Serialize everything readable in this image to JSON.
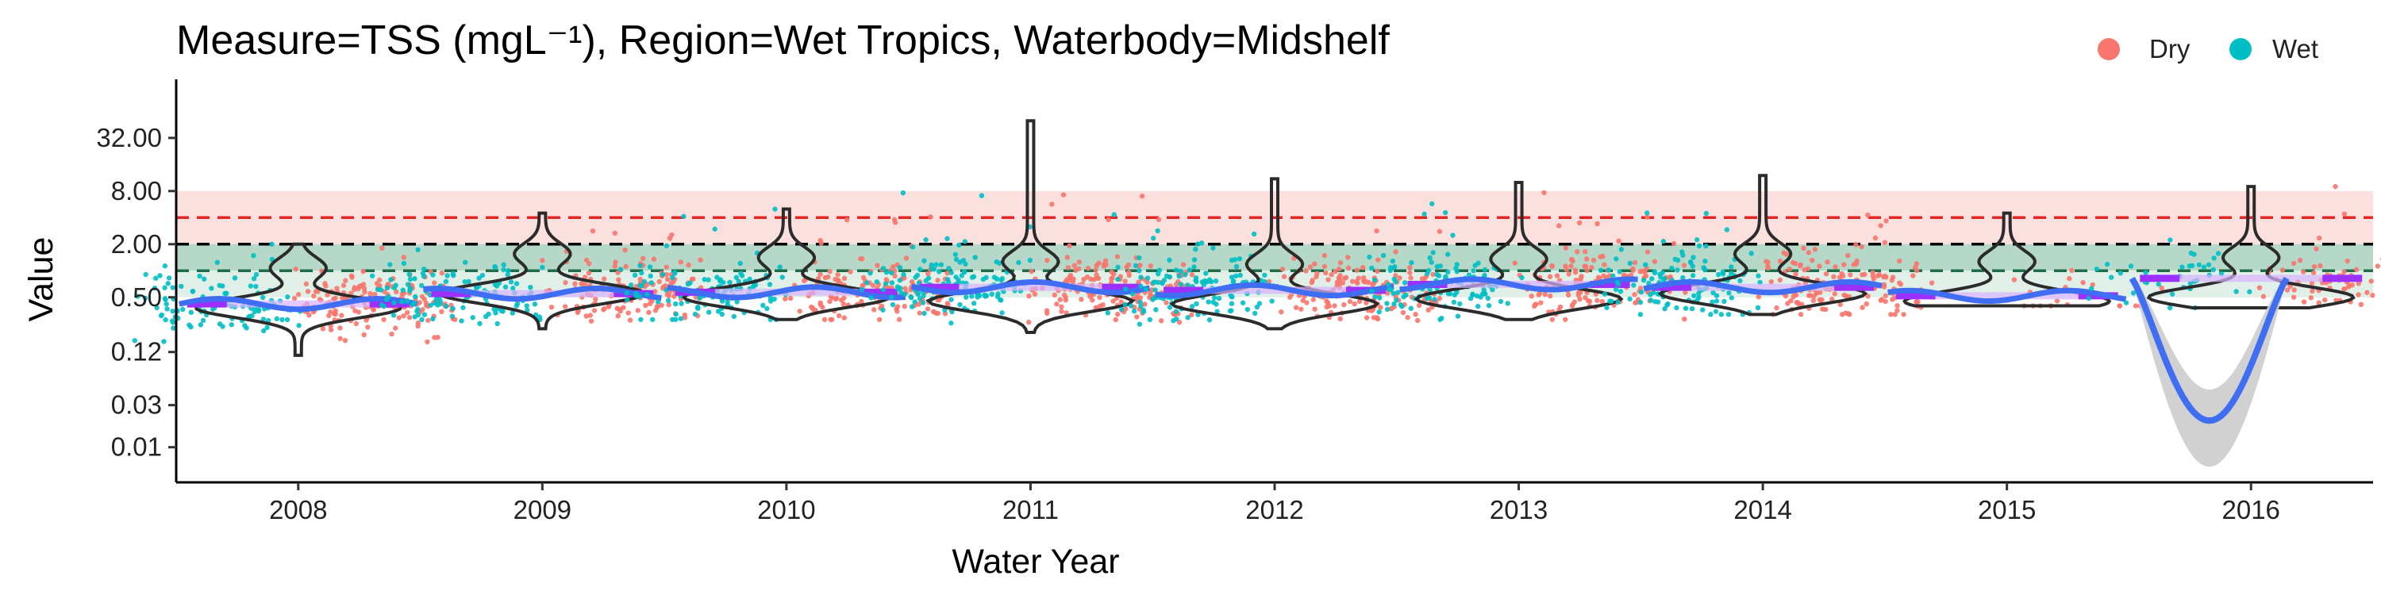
{
  "chart_data": {
    "type": "violin",
    "title": "Measure=TSS (mgL⁻¹), Region=Wet Tropics, Waterbody=Midshelf",
    "xlabel": "Water Year",
    "ylabel": "Value",
    "y_scale": "log",
    "y_range": [
      0.004,
      120
    ],
    "y_ticks": [
      0.01,
      0.03,
      0.12,
      0.5,
      2,
      8,
      32
    ],
    "y_tick_labels": [
      "0.01",
      "0.03",
      "0.12",
      "0.50",
      "2.00",
      "8.00",
      "32.00"
    ],
    "categories": [
      "2008",
      "2009",
      "2010",
      "2011",
      "2012",
      "2013",
      "2014",
      "2015",
      "2016"
    ],
    "legend": {
      "placement": "top-right",
      "entries": [
        {
          "name": "Dry",
          "color": "#F8766D"
        },
        {
          "name": "Wet",
          "color": "#00BFC4"
        }
      ]
    },
    "reference_lines": [
      {
        "value": 4.0,
        "color": "#e32626",
        "style": "dashed"
      },
      {
        "value": 2.0,
        "color": "#000000",
        "style": "dashed"
      },
      {
        "value": 1.0,
        "color": "#1f6e4a",
        "style": "dashed"
      }
    ],
    "bands": [
      {
        "from": 2.0,
        "to": 8.0,
        "color": "#fbe0de"
      },
      {
        "from": 1.0,
        "to": 2.0,
        "color": "#b5d8c8"
      },
      {
        "from": 0.5,
        "to": 1.0,
        "color": "#e0efe7"
      }
    ],
    "years": [
      {
        "year": "2008",
        "median": 0.42,
        "min": 0.11,
        "max": 2.0,
        "mode": 0.38,
        "dry_n": 160,
        "wet_n": 110
      },
      {
        "year": "2009",
        "median": 0.55,
        "min": 0.22,
        "max": 4.5,
        "mode": 0.55,
        "dry_n": 150,
        "wet_n": 130
      },
      {
        "year": "2010",
        "median": 0.57,
        "min": 0.28,
        "max": 5.0,
        "mode": 0.5,
        "dry_n": 150,
        "wet_n": 120
      },
      {
        "year": "2011",
        "median": 0.65,
        "min": 0.2,
        "max": 50.0,
        "mode": 0.45,
        "dry_n": 170,
        "wet_n": 140
      },
      {
        "year": "2012",
        "median": 0.6,
        "min": 0.22,
        "max": 11.0,
        "mode": 0.42,
        "dry_n": 170,
        "wet_n": 140
      },
      {
        "year": "2013",
        "median": 0.7,
        "min": 0.28,
        "max": 10.0,
        "mode": 0.48,
        "dry_n": 150,
        "wet_n": 120
      },
      {
        "year": "2014",
        "median": 0.65,
        "min": 0.32,
        "max": 12.0,
        "mode": 0.55,
        "dry_n": 160,
        "wet_n": 130
      },
      {
        "year": "2015",
        "median": 0.52,
        "min": 0.4,
        "max": 4.5,
        "mode": 0.45,
        "dry_n": 20,
        "wet_n": 0
      },
      {
        "year": "2016",
        "median": 0.82,
        "min": 0.38,
        "max": 9.0,
        "mode": 0.5,
        "dry_n": 70,
        "wet_n": 40
      }
    ],
    "trend_line": {
      "color": "#3f6ef2",
      "ribbon_color": "#cccccc",
      "dip_year": "2016",
      "dip_value": 0.02,
      "dip_lower": 0.006,
      "dip_upper": 0.045
    },
    "median_line_color": "#9b30ff"
  }
}
